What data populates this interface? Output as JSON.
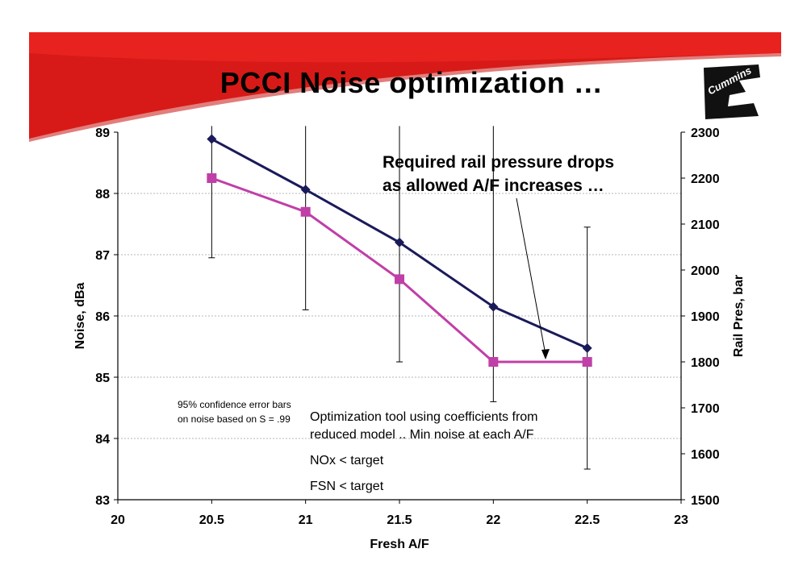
{
  "slide": {
    "title": "PCCI Noise optimization …",
    "logo_text": "Cummins",
    "colors": {
      "banner": "#e8231f",
      "banner_dark": "#c81410",
      "series_noise": "#c03fa8",
      "series_pressure": "#1a1a5a"
    }
  },
  "chart_data": {
    "type": "line",
    "xlabel": "Fresh A/F",
    "ylabel": "Noise, dBa",
    "y2label": "Rail Pres, bar",
    "xlim": [
      20,
      23
    ],
    "ylim": [
      83,
      89
    ],
    "y2lim": [
      1500,
      2300
    ],
    "x_ticks": [
      "20",
      "20.5",
      "21",
      "21.5",
      "22",
      "22.5",
      "23"
    ],
    "y_ticks": [
      "83",
      "84",
      "85",
      "86",
      "87",
      "88",
      "89"
    ],
    "y2_ticks": [
      "1500",
      "1600",
      "1700",
      "1800",
      "1900",
      "2000",
      "2100",
      "2200",
      "2300"
    ],
    "grid": true,
    "series": [
      {
        "axis": "left",
        "marker": "square",
        "color": "#c03fa8",
        "x": [
          20.5,
          21,
          21.5,
          22,
          22.5
        ],
        "y": [
          88.25,
          87.7,
          86.6,
          85.25,
          85.25
        ],
        "error_bars": [
          [
            86.95,
            89.1
          ],
          [
            86.1,
            89.1
          ],
          [
            85.25,
            89.1
          ],
          [
            84.6,
            89.1
          ],
          [
            83.5,
            87.45
          ]
        ]
      },
      {
        "axis": "right",
        "marker": "diamond",
        "color": "#1a1a5a",
        "x": [
          20.5,
          21,
          21.5,
          22,
          22.5
        ],
        "y": [
          2285,
          2175,
          2060,
          1920,
          1830
        ]
      }
    ],
    "annotations": {
      "rail_note": [
        "Required rail pressure drops",
        "as allowed A/F increases …"
      ],
      "confidence_note": [
        "95% confidence error bars",
        "on noise based on S = .99"
      ],
      "optimization_note": [
        "Optimization tool using coefficients from",
        "reduced model .. Min noise at each A/F"
      ],
      "nox_note": "NOx < target",
      "fsn_note": "FSN < target"
    }
  }
}
